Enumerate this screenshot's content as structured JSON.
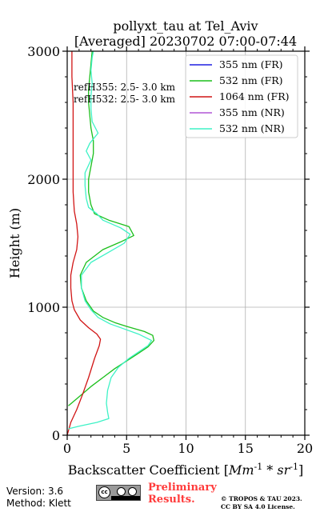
{
  "chart_data": {
    "type": "line",
    "title": "pollyxt_tau at Tel_Aviv",
    "subtitle": "[Averaged] 20230702 07:00-07:44",
    "xlabel": "Backscatter Coefficient [Mm^-1 * sr^-1]",
    "ylabel": "Height (m)",
    "xlim": [
      0,
      20
    ],
    "ylim": [
      0,
      3000
    ],
    "x_ticks": [
      "0",
      "5",
      "10",
      "15",
      "20"
    ],
    "y_ticks": [
      "0",
      "1000",
      "2000",
      "3000"
    ],
    "grid": true,
    "legend_position": "top-right",
    "annotations": [
      "refH355:  2.5- 3.0 km",
      "refH532:  2.5- 3.0 km"
    ],
    "series": [
      {
        "name": "355 nm (FR)",
        "color": "#1f1fe0",
        "points": []
      },
      {
        "name": "532 nm (FR)",
        "color": "#1bbf1b",
        "points": [
          [
            0.1,
            230
          ],
          [
            1.0,
            300
          ],
          [
            2.0,
            380
          ],
          [
            3.0,
            450
          ],
          [
            4.0,
            520
          ],
          [
            5.0,
            580
          ],
          [
            6.0,
            640
          ],
          [
            6.8,
            690
          ],
          [
            7.3,
            740
          ],
          [
            7.2,
            780
          ],
          [
            6.5,
            810
          ],
          [
            5.0,
            850
          ],
          [
            4.0,
            880
          ],
          [
            3.0,
            920
          ],
          [
            2.2,
            970
          ],
          [
            1.6,
            1050
          ],
          [
            1.2,
            1150
          ],
          [
            1.1,
            1250
          ],
          [
            1.6,
            1350
          ],
          [
            3.0,
            1450
          ],
          [
            4.5,
            1510
          ],
          [
            5.6,
            1560
          ],
          [
            5.2,
            1630
          ],
          [
            3.5,
            1680
          ],
          [
            2.3,
            1730
          ],
          [
            2.0,
            1800
          ],
          [
            1.8,
            1900
          ],
          [
            1.8,
            2000
          ],
          [
            2.0,
            2100
          ],
          [
            2.2,
            2200
          ],
          [
            2.2,
            2300
          ],
          [
            2.0,
            2400
          ],
          [
            1.9,
            2500
          ],
          [
            1.8,
            2600
          ],
          [
            1.8,
            2700
          ],
          [
            1.9,
            2800
          ],
          [
            2.0,
            2900
          ],
          [
            2.1,
            3000
          ]
        ]
      },
      {
        "name": "1064 nm (FR)",
        "color": "#d11515",
        "points": [
          [
            0.0,
            0
          ],
          [
            0.3,
            100
          ],
          [
            0.8,
            200
          ],
          [
            1.3,
            320
          ],
          [
            1.8,
            450
          ],
          [
            2.3,
            600
          ],
          [
            2.7,
            700
          ],
          [
            2.8,
            750
          ],
          [
            2.5,
            790
          ],
          [
            1.8,
            840
          ],
          [
            1.1,
            900
          ],
          [
            0.6,
            980
          ],
          [
            0.4,
            1050
          ],
          [
            0.3,
            1150
          ],
          [
            0.3,
            1250
          ],
          [
            0.5,
            1350
          ],
          [
            0.8,
            1450
          ],
          [
            0.9,
            1550
          ],
          [
            0.8,
            1650
          ],
          [
            0.6,
            1750
          ],
          [
            0.5,
            1900
          ],
          [
            0.5,
            2050
          ],
          [
            0.5,
            2200
          ],
          [
            0.5,
            2400
          ],
          [
            0.5,
            2600
          ],
          [
            0.4,
            2800
          ],
          [
            0.4,
            3000
          ]
        ]
      },
      {
        "name": "355 nm (NR)",
        "color": "#b057d6",
        "points": []
      },
      {
        "name": "532 nm (NR)",
        "color": "#3ef2c6",
        "points": [
          [
            0.1,
            50
          ],
          [
            1.0,
            70
          ],
          [
            2.5,
            100
          ],
          [
            3.5,
            130
          ],
          [
            3.4,
            180
          ],
          [
            3.3,
            250
          ],
          [
            3.4,
            350
          ],
          [
            3.7,
            450
          ],
          [
            4.3,
            530
          ],
          [
            5.2,
            600
          ],
          [
            6.8,
            700
          ],
          [
            7.1,
            740
          ],
          [
            6.0,
            790
          ],
          [
            4.8,
            830
          ],
          [
            3.6,
            870
          ],
          [
            2.6,
            920
          ],
          [
            2.0,
            980
          ],
          [
            1.5,
            1050
          ],
          [
            1.2,
            1150
          ],
          [
            1.2,
            1250
          ],
          [
            2.0,
            1350
          ],
          [
            3.5,
            1430
          ],
          [
            4.8,
            1500
          ],
          [
            5.3,
            1570
          ],
          [
            4.5,
            1620
          ],
          [
            3.0,
            1680
          ],
          [
            2.5,
            1730
          ],
          [
            1.8,
            1780
          ],
          [
            1.6,
            1850
          ],
          [
            1.5,
            1950
          ],
          [
            1.5,
            2050
          ],
          [
            2.0,
            2150
          ],
          [
            1.6,
            2220
          ],
          [
            1.9,
            2280
          ],
          [
            2.6,
            2360
          ],
          [
            2.1,
            2450
          ],
          [
            2.0,
            2550
          ],
          [
            2.0,
            2650
          ],
          [
            2.1,
            2750
          ],
          [
            2.0,
            2850
          ],
          [
            2.1,
            2950
          ],
          [
            2.2,
            3000
          ]
        ]
      }
    ]
  },
  "footer": {
    "version": "Version: 3.6",
    "method": "Method: Klett",
    "cc_badge": "cc",
    "preliminary": "Preliminary\nResults.",
    "copyright": "© TROPOS & TAU 2023.\nCC BY SA 4.0 License."
  }
}
